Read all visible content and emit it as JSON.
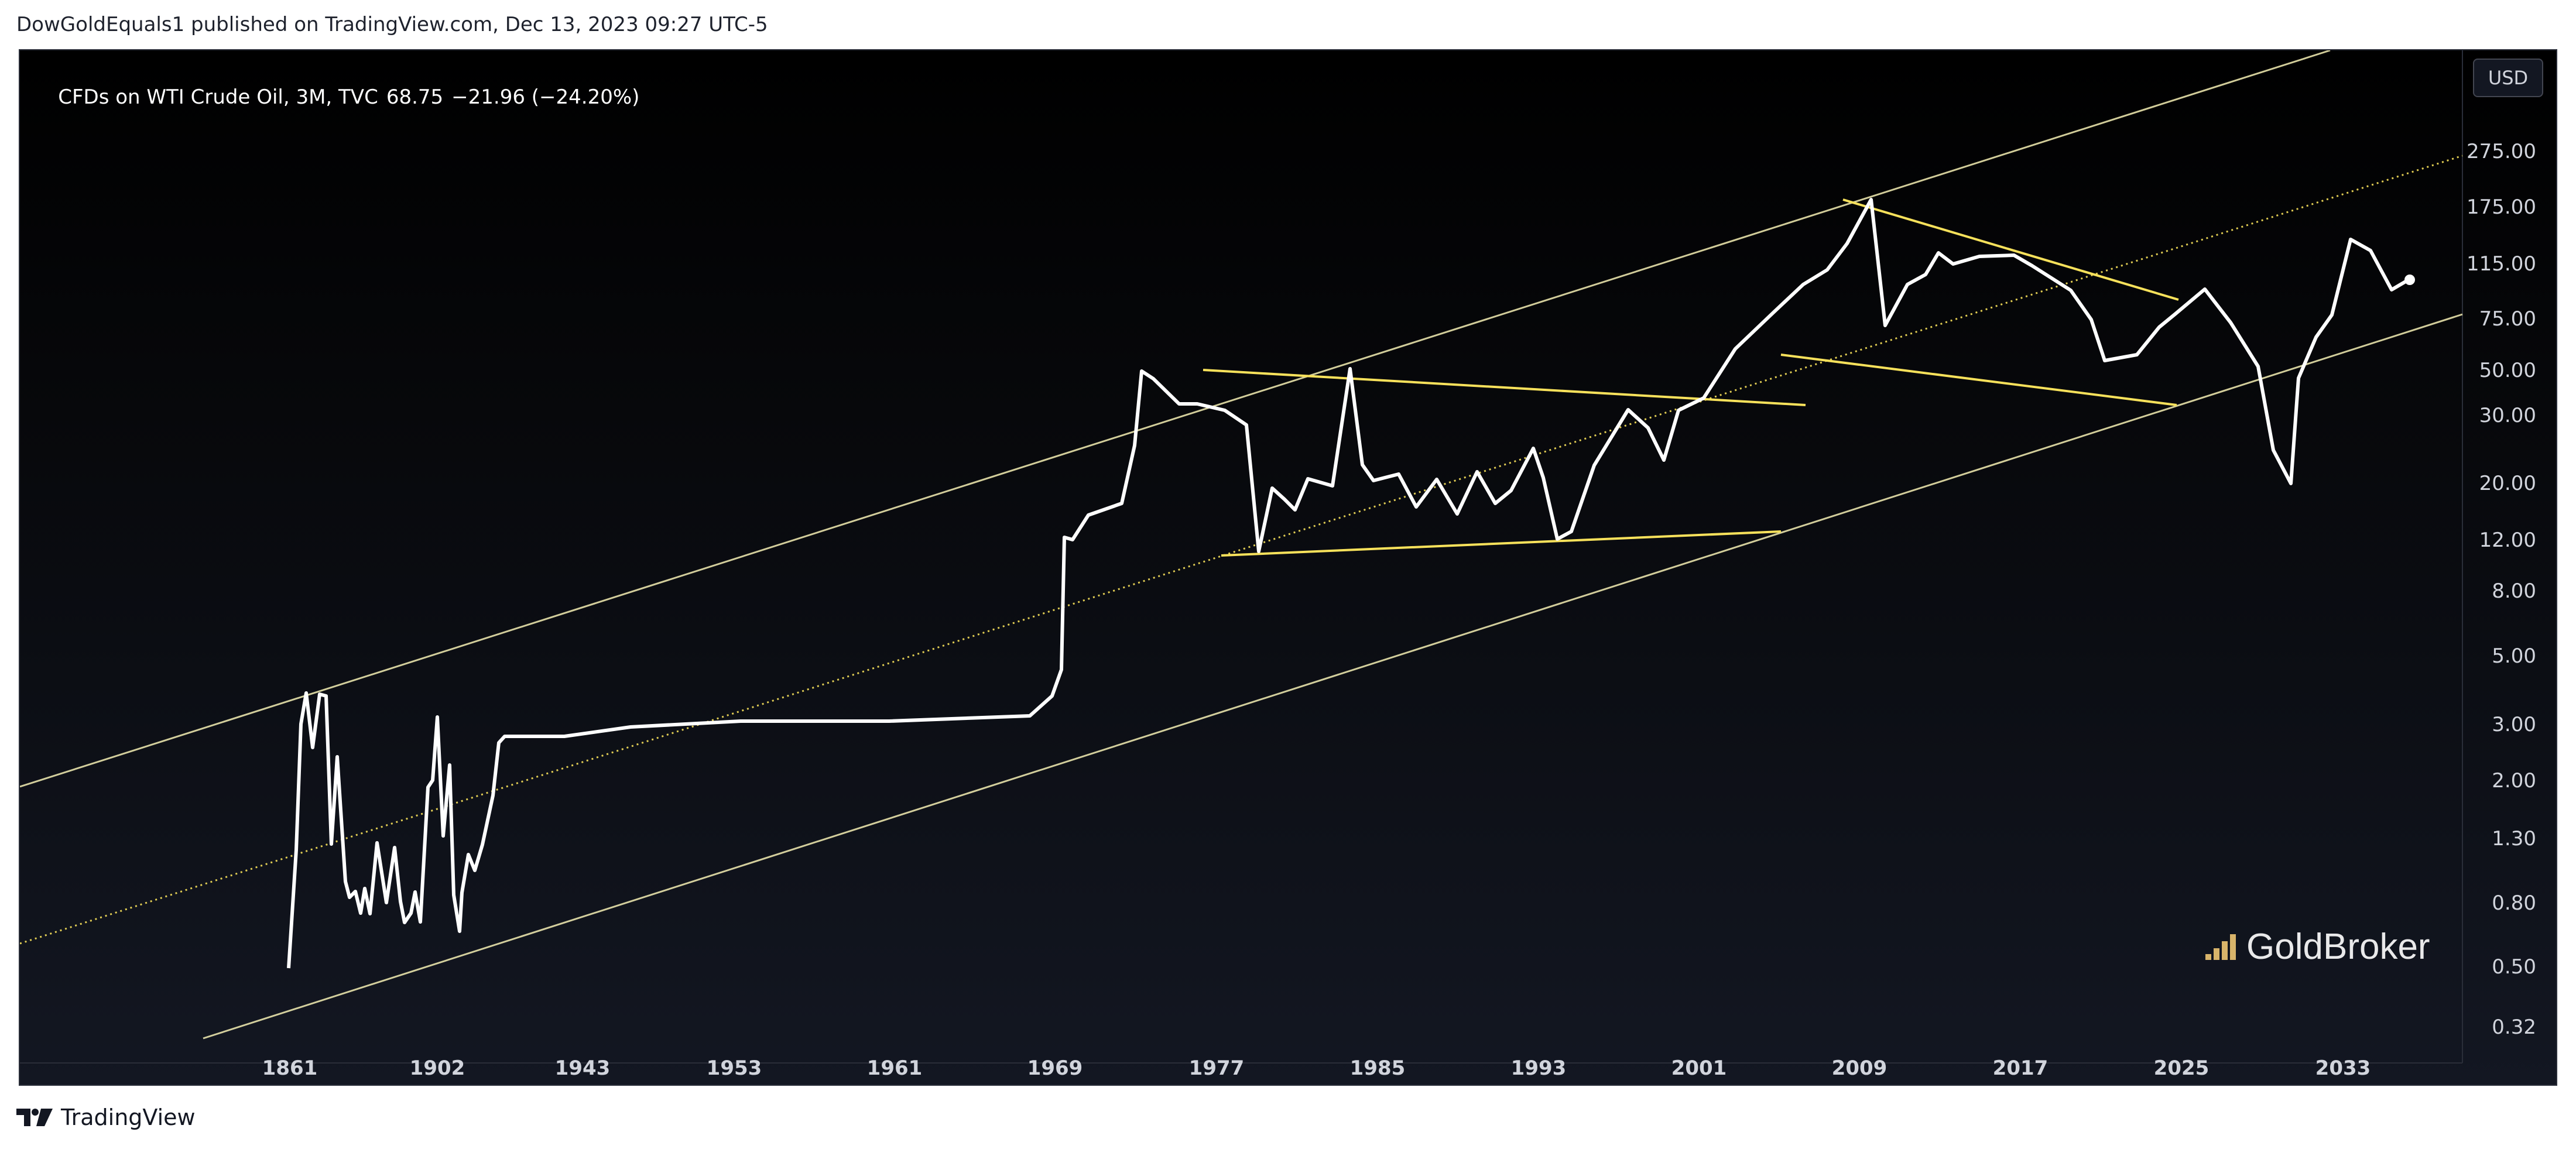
{
  "header": {
    "published_line": "DowGoldEquals1 published on TradingView.com, Dec 13, 2023 09:27 UTC-5"
  },
  "legend": {
    "symbol": "CFDs on WTI Crude Oil, 3M, TVC",
    "last": "68.75",
    "change": "−21.96 (−24.20%)"
  },
  "currency_button": "USD",
  "watermark": {
    "text": "GoldBroker",
    "icon": "goldbroker-bars-icon"
  },
  "footer": {
    "brand": "TradingView",
    "icon": "tradingview-logo-icon"
  },
  "colors": {
    "price_line": "#ffffff",
    "trendline": "#f7e15b",
    "channel": "#f6f0b4",
    "axis_text": "#d1d4dc",
    "background_top": "#000000",
    "background_bottom": "#131722"
  },
  "chart_data": {
    "type": "line",
    "scale": "log",
    "y_ticks": [
      "0.32",
      "0.50",
      "0.80",
      "1.30",
      "2.00",
      "3.00",
      "5.00",
      "8.00",
      "12.00",
      "20.00",
      "30.00",
      "50.00",
      "75.00",
      "115.00",
      "175.00",
      "275.00"
    ],
    "x_ticks": [
      "1861",
      "1902",
      "1943",
      "1953",
      "1961",
      "1969",
      "1977",
      "1985",
      "1993",
      "2001",
      "2009",
      "2017",
      "2025",
      "2033"
    ],
    "series": [
      {
        "values": [
          [
            "1861",
            0.5
          ],
          [
            "1861",
            1.2
          ],
          [
            "1861",
            3.0
          ],
          [
            "1861",
            3.6
          ],
          [
            "1902",
            2.5
          ],
          [
            "1902",
            3.6
          ],
          [
            "1902",
            3.6
          ],
          [
            "1902",
            1.2
          ],
          [
            "1902",
            2.4
          ],
          [
            "1902",
            0.9
          ],
          [
            "1902",
            0.8
          ],
          [
            "1902",
            0.9
          ],
          [
            "1902",
            0.75
          ],
          [
            "1902",
            0.95
          ],
          [
            "1902",
            0.7
          ],
          [
            "1902",
            1.35
          ],
          [
            "1902",
            0.8
          ],
          [
            "1902",
            1.2
          ],
          [
            "1902",
            0.8
          ],
          [
            "1902",
            0.7
          ],
          [
            "1902",
            0.75
          ],
          [
            "1902",
            0.9
          ],
          [
            "1902",
            0.7
          ],
          [
            "1902",
            1.7
          ],
          [
            "1902",
            2.0
          ],
          [
            "1902",
            3.0
          ],
          [
            "1902",
            1.3
          ],
          [
            "1902",
            1.8
          ],
          [
            "1943",
            1.0
          ],
          [
            "1943",
            0.65
          ],
          [
            "1943",
            0.9
          ],
          [
            "1943",
            1.2
          ],
          [
            "1943",
            1.1
          ],
          [
            "1943",
            1.4
          ],
          [
            "1943",
            1.9
          ],
          [
            "1943",
            2.5
          ],
          [
            "1943",
            2.65
          ],
          [
            "1953",
            2.65
          ],
          [
            "1953",
            2.85
          ],
          [
            "1961",
            2.95
          ],
          [
            "1969",
            3.1
          ],
          [
            "1969",
            3.3
          ],
          [
            "1969",
            3.6
          ],
          [
            "1969",
            4.5
          ],
          [
            "1977",
            10.5
          ],
          [
            "1977",
            11.5
          ],
          [
            "1977",
            14.5
          ],
          [
            "1977",
            14.8
          ],
          [
            "1977",
            22
          ],
          [
            "1977",
            38
          ],
          [
            "1977",
            35
          ],
          [
            "1985",
            28
          ],
          [
            "1985",
            30
          ],
          [
            "1985",
            28
          ],
          [
            "1985",
            26
          ],
          [
            "1985",
            11
          ],
          [
            "1985",
            18
          ],
          [
            "1985",
            15
          ],
          [
            "1985",
            14
          ],
          [
            "1985",
            19
          ],
          [
            "1993",
            16
          ],
          [
            "1993",
            38
          ],
          [
            "1993",
            20
          ],
          [
            "1993",
            17
          ],
          [
            "1993",
            21
          ],
          [
            "1993",
            18
          ],
          [
            "1993",
            15
          ],
          [
            "1993",
            17
          ],
          [
            "1993",
            20
          ],
          [
            "1993",
            16
          ],
          [
            "1993",
            19
          ],
          [
            "1993",
            25
          ],
          [
            "1993",
            20
          ],
          [
            "1993",
            13
          ],
          [
            "1993",
            12
          ],
          [
            "1993",
            20
          ],
          [
            "2001",
            30
          ],
          [
            "2001",
            25
          ],
          [
            "2001",
            21
          ],
          [
            "2001",
            28
          ],
          [
            "2001",
            33
          ],
          [
            "2001",
            45
          ],
          [
            "2001",
            55
          ],
          [
            "2001",
            65
          ],
          [
            "2009",
            75
          ],
          [
            "2009",
            95
          ],
          [
            "2009",
            145
          ],
          [
            "2009",
            45
          ],
          [
            "2009",
            78
          ],
          [
            "2009",
            85
          ],
          [
            "2009",
            107
          ],
          [
            "2009",
            95
          ],
          [
            "2009",
            100
          ],
          [
            "2009",
            105
          ],
          [
            "2009",
            97
          ],
          [
            "2009",
            80
          ],
          [
            "2009",
            48
          ],
          [
            "2009",
            40
          ],
          [
            "2017",
            40
          ],
          [
            "2017",
            50
          ],
          [
            "2017",
            45
          ],
          [
            "2017",
            55
          ],
          [
            "2017",
            62
          ],
          [
            "2017",
            70
          ],
          [
            "2017",
            50
          ],
          [
            "2017",
            20
          ],
          [
            "2017",
            40
          ],
          [
            "2017",
            60
          ],
          [
            "2017",
            78
          ],
          [
            "2025",
            110
          ],
          [
            "2025",
            80
          ],
          [
            "2025",
            72
          ],
          [
            "2025",
            90
          ],
          [
            "2025",
            68.75
          ]
        ]
      }
    ],
    "trendlines": [
      [
        "1977",
        38,
        "2009",
        32
      ],
      [
        "1977",
        10.5,
        "2009",
        12.1
      ],
      [
        "2009",
        145,
        "2025",
        68
      ],
      [
        "2009",
        45,
        "2025",
        30.5
      ]
    ],
    "channel": {
      "upper": [
        "1861",
        1.9,
        "2033",
        400
      ],
      "middle": [
        "1861",
        0.6,
        "2033",
        185
      ],
      "lower": [
        "1861",
        0.3,
        "2033",
        58
      ]
    }
  }
}
